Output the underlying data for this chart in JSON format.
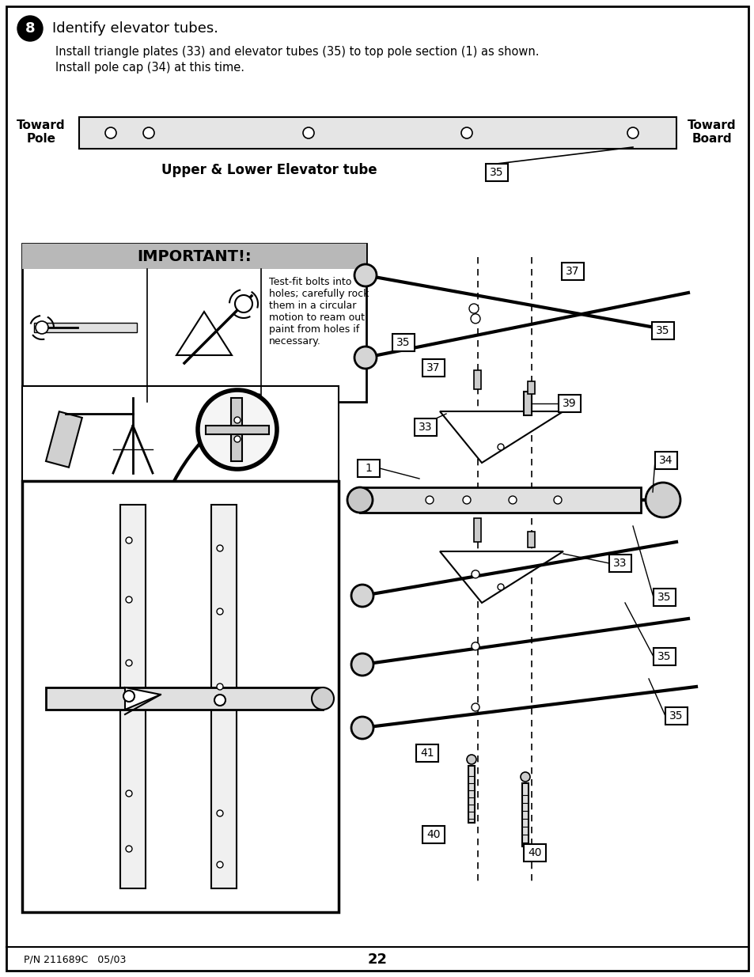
{
  "background_color": "#ffffff",
  "step_number": "8",
  "step_title": "Identify elevator tubes.",
  "step_desc_line1": "Install triangle plates (33) and elevator tubes (35) to top pole section (1) as shown.",
  "step_desc_line2": "Install pole cap (34) at this time.",
  "toward_pole_label1": "Toward",
  "toward_pole_label2": "Pole",
  "toward_board_label1": "Toward",
  "toward_board_label2": "Board",
  "elevator_tube_label": "Upper & Lower Elevator tube",
  "important_label": "IMPORTANT!:",
  "important_text": "Test-fit bolts into\nholes; carefully rock\nthem in a circular\nmotion to ream out\npaint from holes if\nnecessary.",
  "footer_left": "P/N 211689C   05/03",
  "footer_center": "22"
}
